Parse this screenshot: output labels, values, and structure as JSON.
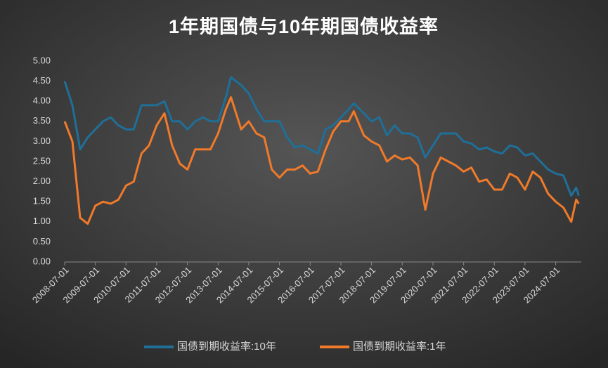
{
  "chart_data": {
    "type": "line",
    "title": "1年期国债与10年期国债收益率",
    "x": [
      "2008-07-01",
      "2008-10-01",
      "2009-01-01",
      "2009-04-01",
      "2009-07-01",
      "2009-10-01",
      "2010-01-01",
      "2010-04-01",
      "2010-07-01",
      "2010-10-01",
      "2011-01-01",
      "2011-04-01",
      "2011-07-01",
      "2011-10-01",
      "2012-01-01",
      "2012-04-01",
      "2012-07-01",
      "2012-10-01",
      "2013-01-01",
      "2013-04-01",
      "2013-07-01",
      "2013-10-01",
      "2013-12-01",
      "2014-04-01",
      "2014-07-01",
      "2014-10-01",
      "2015-01-01",
      "2015-04-01",
      "2015-07-01",
      "2015-10-01",
      "2016-01-01",
      "2016-04-01",
      "2016-07-01",
      "2016-10-01",
      "2017-01-01",
      "2017-04-01",
      "2017-07-01",
      "2017-10-01",
      "2017-12-01",
      "2018-04-01",
      "2018-07-01",
      "2018-10-01",
      "2019-01-01",
      "2019-04-01",
      "2019-07-01",
      "2019-10-01",
      "2020-01-01",
      "2020-04-01",
      "2020-07-01",
      "2020-10-01",
      "2021-01-01",
      "2021-04-01",
      "2021-07-01",
      "2021-10-01",
      "2022-01-01",
      "2022-04-01",
      "2022-07-01",
      "2022-10-01",
      "2023-01-01",
      "2023-04-01",
      "2023-07-01",
      "2023-10-01",
      "2024-01-01",
      "2024-04-01",
      "2024-07-01",
      "2024-10-01",
      "2025-01-01",
      "2025-03-01",
      "2025-04-01"
    ],
    "series": [
      {
        "name": "国债到期收益率:10年",
        "color": "#1f6f98",
        "values": [
          4.5,
          3.9,
          2.8,
          3.1,
          3.3,
          3.5,
          3.6,
          3.4,
          3.3,
          3.3,
          3.9,
          3.9,
          3.9,
          4.0,
          3.5,
          3.5,
          3.3,
          3.5,
          3.6,
          3.5,
          3.5,
          4.1,
          4.6,
          4.4,
          4.2,
          3.8,
          3.5,
          3.5,
          3.5,
          3.1,
          2.85,
          2.9,
          2.8,
          2.7,
          3.3,
          3.4,
          3.6,
          3.8,
          3.95,
          3.7,
          3.5,
          3.6,
          3.15,
          3.4,
          3.2,
          3.2,
          3.1,
          2.6,
          2.9,
          3.2,
          3.2,
          3.2,
          3.0,
          2.95,
          2.8,
          2.85,
          2.75,
          2.7,
          2.9,
          2.85,
          2.65,
          2.7,
          2.5,
          2.3,
          2.2,
          2.15,
          1.65,
          1.85,
          1.65
        ]
      },
      {
        "name": "国债到期收益率:1年",
        "color": "#f07a2a",
        "values": [
          3.5,
          3.0,
          1.1,
          0.95,
          1.4,
          1.5,
          1.45,
          1.55,
          1.9,
          2.0,
          2.7,
          2.9,
          3.4,
          3.7,
          2.9,
          2.45,
          2.3,
          2.8,
          2.8,
          2.8,
          3.2,
          3.8,
          4.1,
          3.3,
          3.5,
          3.2,
          3.1,
          2.3,
          2.1,
          2.3,
          2.3,
          2.4,
          2.2,
          2.25,
          2.8,
          3.25,
          3.5,
          3.5,
          3.75,
          3.15,
          3.0,
          2.9,
          2.5,
          2.65,
          2.55,
          2.6,
          2.4,
          1.3,
          2.2,
          2.6,
          2.5,
          2.4,
          2.25,
          2.35,
          2.0,
          2.05,
          1.8,
          1.8,
          2.2,
          2.1,
          1.8,
          2.25,
          2.1,
          1.7,
          1.5,
          1.35,
          1.0,
          1.55,
          1.45
        ]
      }
    ],
    "xlim": [
      "2008-07-01",
      "2025-05-01"
    ],
    "xticks": [
      "2008-07-01",
      "2009-07-01",
      "2010-07-01",
      "2011-07-01",
      "2012-07-01",
      "2013-07-01",
      "2014-07-01",
      "2015-07-01",
      "2016-07-01",
      "2017-07-01",
      "2018-07-01",
      "2019-07-01",
      "2020-07-01",
      "2021-07-01",
      "2022-07-01",
      "2023-07-01",
      "2024-07-01"
    ],
    "ylim": [
      0,
      5
    ],
    "yticks": [
      {
        "value": 0,
        "label": "0.00"
      },
      {
        "value": 0.5,
        "label": "0.50"
      },
      {
        "value": 1,
        "label": "1.00"
      },
      {
        "value": 1.5,
        "label": "1.50"
      },
      {
        "value": 2,
        "label": "2.00"
      },
      {
        "value": 2.5,
        "label": "2.50"
      },
      {
        "value": 3,
        "label": "3.00"
      },
      {
        "value": 3.5,
        "label": "3.50"
      },
      {
        "value": 4,
        "label": "4.00"
      },
      {
        "value": 4.5,
        "label": "4.50"
      },
      {
        "value": 5,
        "label": "5.00"
      }
    ],
    "grid": false
  }
}
